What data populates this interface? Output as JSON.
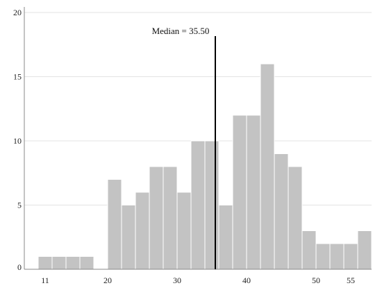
{
  "chart_data": {
    "type": "bar",
    "title": "",
    "xlabel": "",
    "ylabel": "",
    "bin_width": 2,
    "bins_start": 10,
    "values": [
      1,
      1,
      1,
      1,
      0,
      7,
      5,
      6,
      8,
      8,
      6,
      10,
      10,
      5,
      12,
      12,
      16,
      9,
      8,
      3,
      2,
      2,
      2,
      3
    ],
    "xlim": [
      8,
      58
    ],
    "ylim": [
      0,
      20
    ],
    "y_ticks": [
      0,
      5,
      10,
      15,
      20
    ],
    "x_ticks": [
      11,
      20,
      30,
      40,
      50,
      55
    ],
    "grid": "horizontal",
    "median": {
      "value": 35.5,
      "label": "Median = 35.50"
    },
    "colors": {
      "bar": "#c3c3c3",
      "bar_edge": "#ffffff",
      "grid": "#e3e3e3",
      "median": "#000000",
      "axis": "#888888"
    }
  }
}
